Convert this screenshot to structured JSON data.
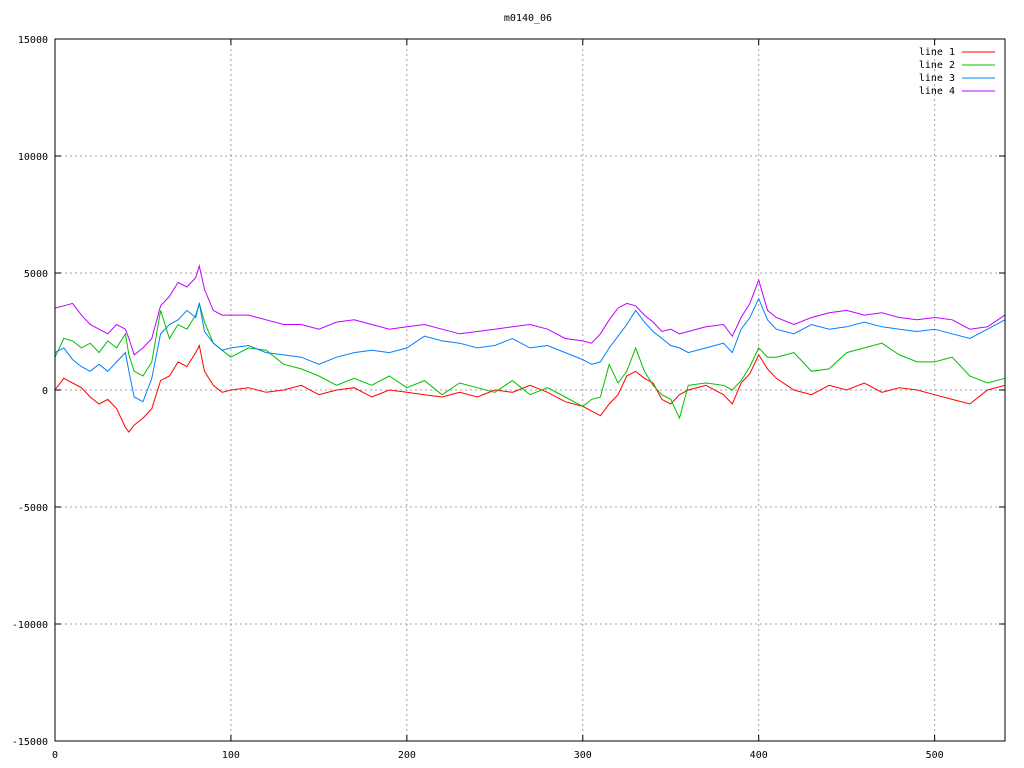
{
  "chart_data": {
    "type": "line",
    "title": "m0140_06",
    "xlabel": "",
    "ylabel": "",
    "xlim": [
      0,
      540
    ],
    "ylim": [
      -15000,
      15000
    ],
    "x_ticks": [
      0,
      100,
      200,
      300,
      400,
      500
    ],
    "y_ticks": [
      -15000,
      -10000,
      -5000,
      0,
      5000,
      10000,
      15000
    ],
    "grid": true,
    "legend_position": "top-right",
    "x": [
      0,
      5,
      10,
      15,
      20,
      25,
      30,
      35,
      40,
      42,
      45,
      50,
      55,
      60,
      65,
      70,
      75,
      80,
      82,
      85,
      90,
      95,
      100,
      110,
      120,
      130,
      140,
      150,
      160,
      170,
      180,
      190,
      200,
      210,
      220,
      230,
      240,
      250,
      260,
      270,
      280,
      290,
      300,
      305,
      310,
      315,
      320,
      325,
      330,
      335,
      340,
      345,
      350,
      355,
      360,
      370,
      380,
      385,
      390,
      395,
      400,
      405,
      410,
      420,
      430,
      440,
      450,
      460,
      470,
      480,
      490,
      500,
      510,
      520,
      530,
      540
    ],
    "series": [
      {
        "name": "line 1",
        "color": "#ff0000",
        "values": [
          0,
          500,
          300,
          100,
          -300,
          -600,
          -400,
          -800,
          -1600,
          -1800,
          -1500,
          -1200,
          -800,
          400,
          600,
          1200,
          1000,
          1600,
          1900,
          800,
          200,
          -100,
          0,
          100,
          -100,
          0,
          200,
          -200,
          0,
          100,
          -300,
          0,
          -100,
          -200,
          -300,
          -100,
          -300,
          0,
          -100,
          200,
          -100,
          -500,
          -700,
          -900,
          -1100,
          -600,
          -200,
          600,
          800,
          500,
          300,
          -400,
          -600,
          -200,
          0,
          200,
          -200,
          -600,
          300,
          700,
          1500,
          900,
          500,
          0,
          -200,
          200,
          0,
          300,
          -100,
          100,
          0,
          -200,
          -400,
          -600,
          0,
          200
        ]
      },
      {
        "name": "line 2",
        "color": "#00c000",
        "values": [
          1400,
          2200,
          2100,
          1800,
          2000,
          1600,
          2100,
          1800,
          2400,
          1500,
          800,
          600,
          1200,
          3400,
          2200,
          2800,
          2600,
          3200,
          3700,
          2900,
          2000,
          1700,
          1400,
          1800,
          1700,
          1100,
          900,
          600,
          200,
          500,
          200,
          600,
          100,
          400,
          -200,
          300,
          100,
          -100,
          400,
          -200,
          100,
          -300,
          -700,
          -400,
          -300,
          1100,
          300,
          800,
          1800,
          800,
          200,
          -200,
          -400,
          -1200,
          200,
          300,
          200,
          0,
          400,
          1000,
          1800,
          1400,
          1400,
          1600,
          800,
          900,
          1600,
          1800,
          2000,
          1500,
          1200,
          1200,
          1400,
          600,
          300,
          500
        ]
      },
      {
        "name": "line 3",
        "color": "#0080ff",
        "values": [
          1600,
          1800,
          1300,
          1000,
          800,
          1100,
          800,
          1200,
          1600,
          800,
          -300,
          -500,
          500,
          2400,
          2800,
          3000,
          3400,
          3100,
          3700,
          2500,
          2000,
          1700,
          1800,
          1900,
          1600,
          1500,
          1400,
          1100,
          1400,
          1600,
          1700,
          1600,
          1800,
          2300,
          2100,
          2000,
          1800,
          1900,
          2200,
          1800,
          1900,
          1600,
          1300,
          1100,
          1200,
          1800,
          2300,
          2800,
          3400,
          2900,
          2500,
          2200,
          1900,
          1800,
          1600,
          1800,
          2000,
          1600,
          2600,
          3100,
          3900,
          3000,
          2600,
          2400,
          2800,
          2600,
          2700,
          2900,
          2700,
          2600,
          2500,
          2600,
          2400,
          2200,
          2600,
          3000
        ]
      },
      {
        "name": "line 4",
        "color": "#c000ff",
        "values": [
          3500,
          3600,
          3700,
          3200,
          2800,
          2600,
          2400,
          2800,
          2600,
          2200,
          1500,
          1800,
          2200,
          3600,
          4000,
          4600,
          4400,
          4800,
          5300,
          4300,
          3400,
          3200,
          3200,
          3200,
          3000,
          2800,
          2800,
          2600,
          2900,
          3000,
          2800,
          2600,
          2700,
          2800,
          2600,
          2400,
          2500,
          2600,
          2700,
          2800,
          2600,
          2200,
          2100,
          2000,
          2400,
          3000,
          3500,
          3700,
          3600,
          3200,
          2900,
          2500,
          2600,
          2400,
          2500,
          2700,
          2800,
          2300,
          3100,
          3700,
          4700,
          3400,
          3100,
          2800,
          3100,
          3300,
          3400,
          3200,
          3300,
          3100,
          3000,
          3100,
          3000,
          2600,
          2700,
          3200
        ]
      }
    ]
  }
}
